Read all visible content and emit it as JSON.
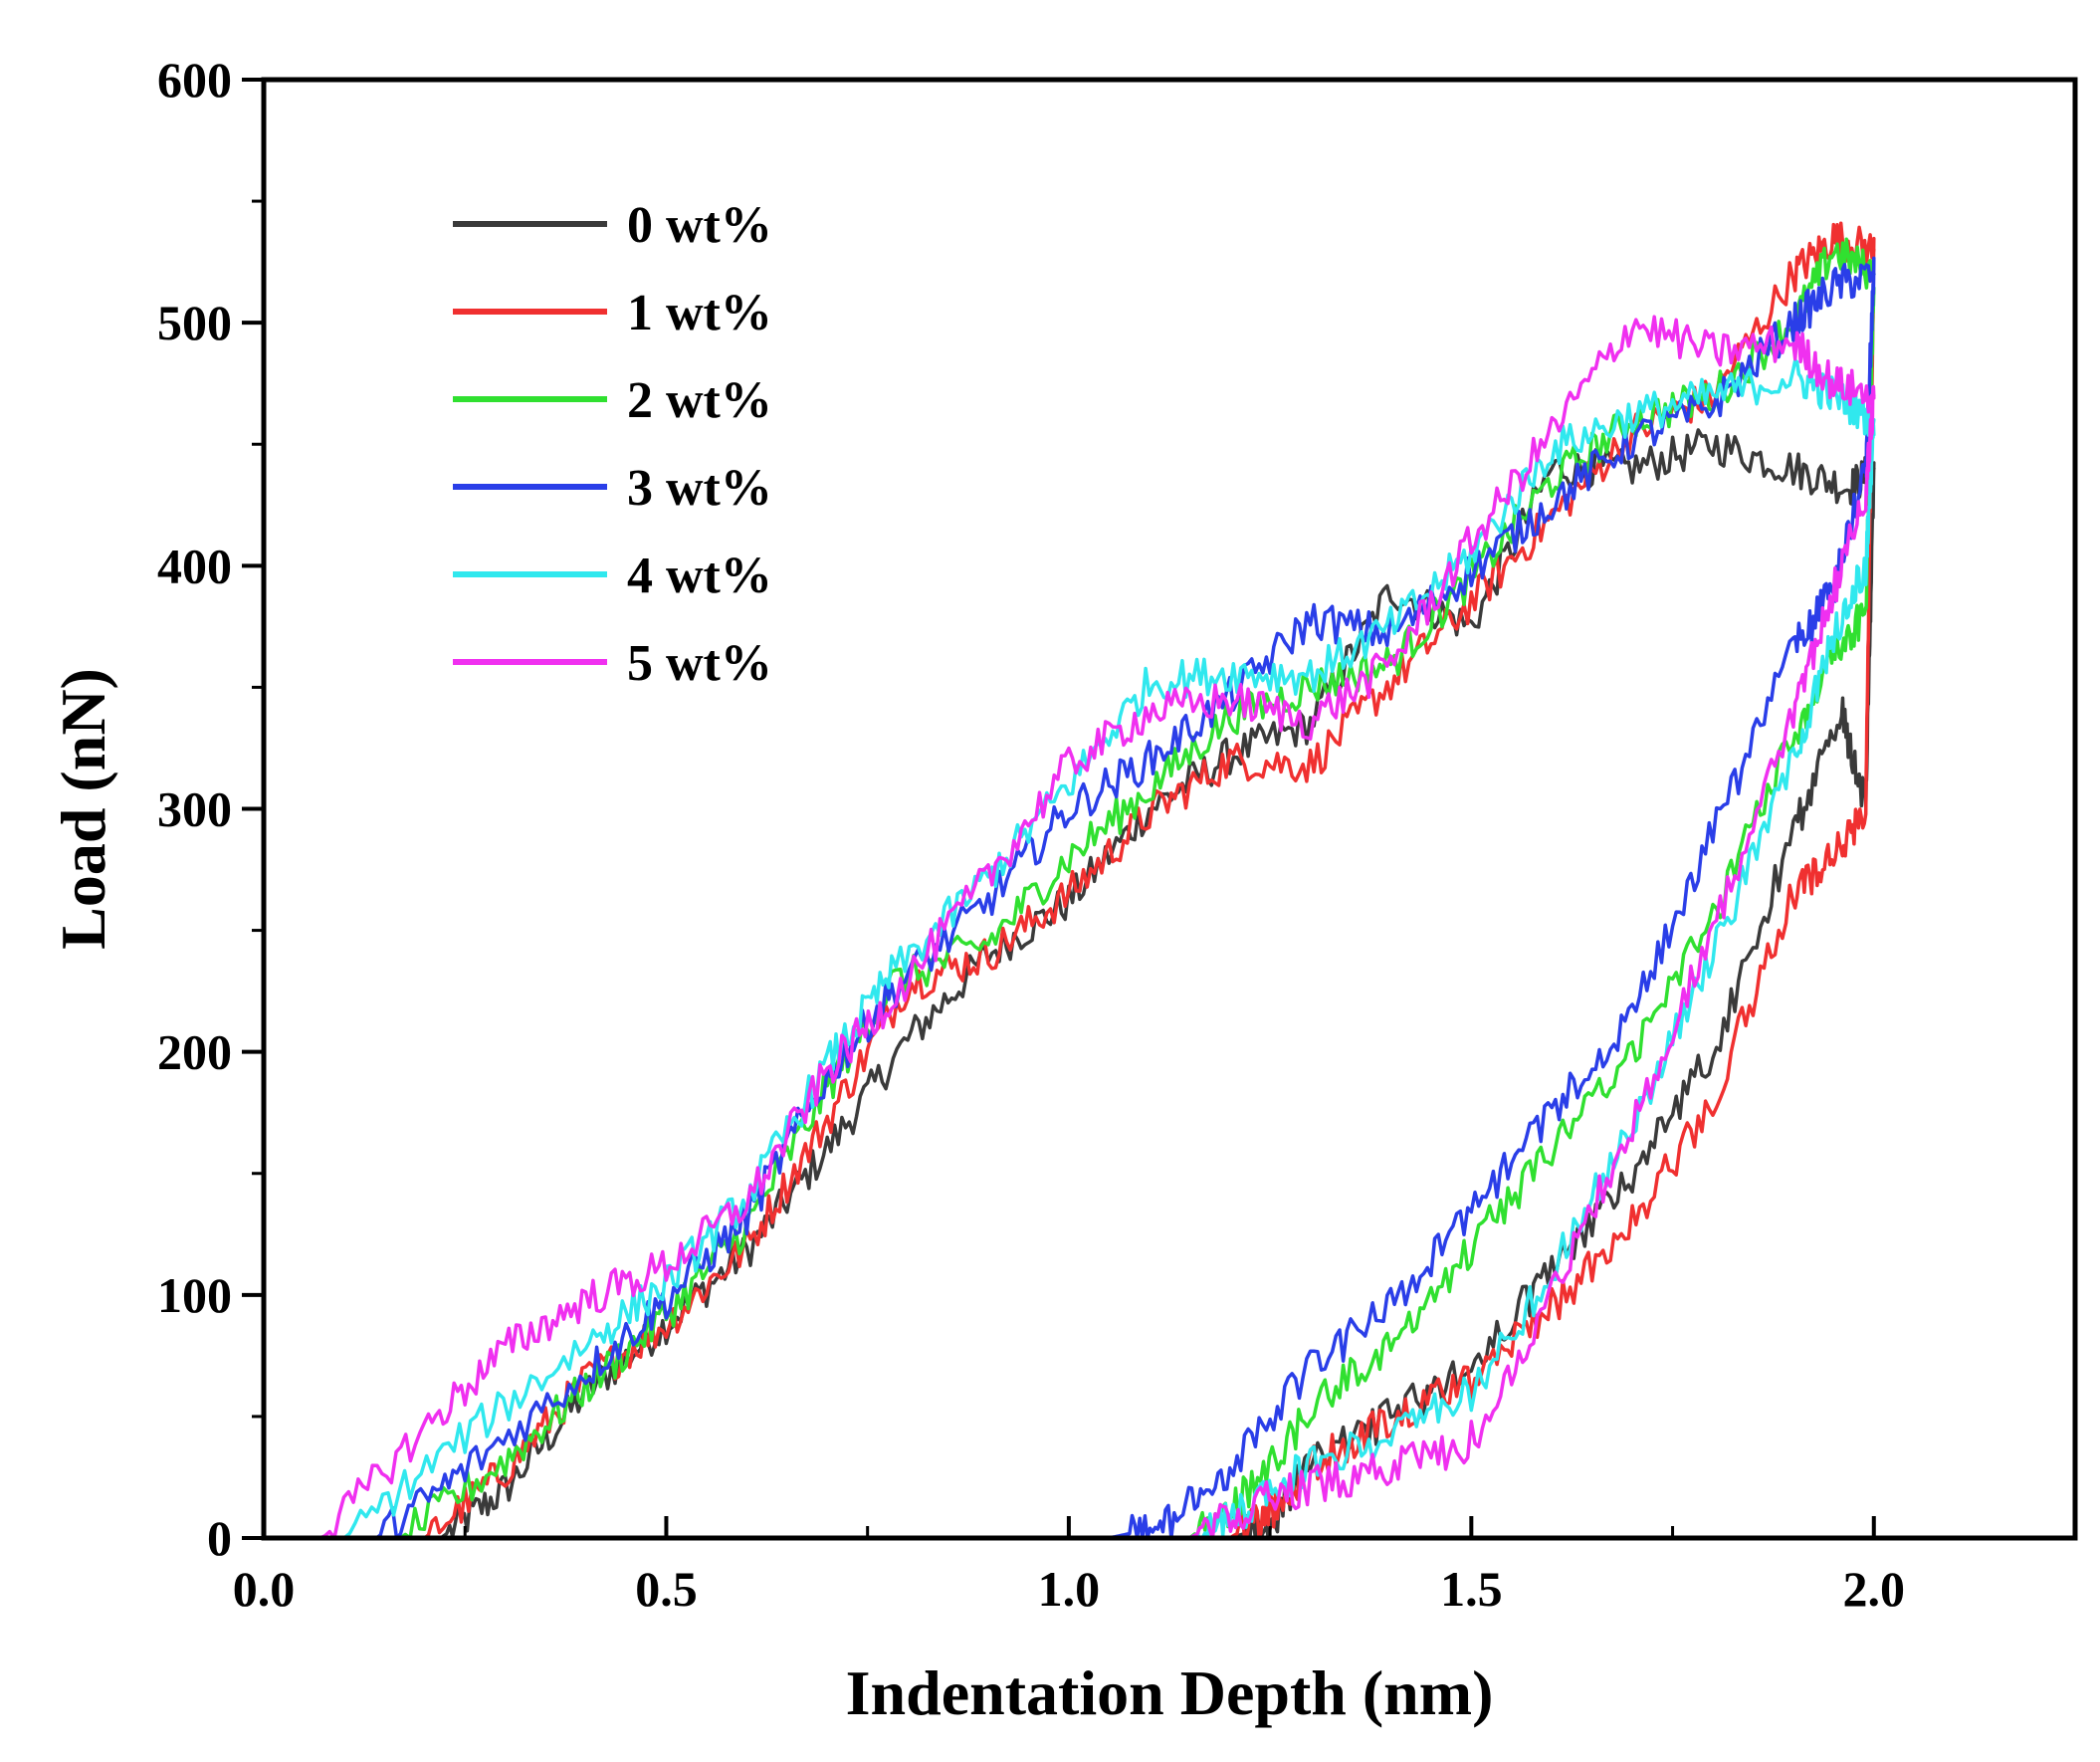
{
  "chart_data": {
    "type": "line",
    "title": "",
    "xlabel": "Indentation Depth (nm)",
    "ylabel": "Load (nN)",
    "xlim": [
      0.0,
      2.25
    ],
    "ylim": [
      0,
      600
    ],
    "x_ticks": [
      0.0,
      0.5,
      1.0,
      1.5,
      2.0
    ],
    "x_tick_labels": [
      "0.0",
      "0.5",
      "1.0",
      "1.5",
      "2.0"
    ],
    "y_ticks": [
      0,
      100,
      200,
      300,
      400,
      500,
      600
    ],
    "y_tick_labels": [
      "0",
      "100",
      "200",
      "300",
      "400",
      "500",
      "600"
    ],
    "grid": false,
    "legend_position": "top-left",
    "series": [
      {
        "name": "0 wt%",
        "color": "#3a3a3a",
        "loading": [
          [
            0.0,
            0
          ],
          [
            0.22,
            0
          ],
          [
            0.3,
            20
          ],
          [
            0.4,
            60
          ],
          [
            0.5,
            88
          ],
          [
            0.6,
            118
          ],
          [
            0.7,
            160
          ],
          [
            0.8,
            205
          ],
          [
            0.9,
            240
          ],
          [
            1.0,
            262
          ],
          [
            1.1,
            300
          ],
          [
            1.2,
            322
          ],
          [
            1.3,
            335
          ],
          [
            1.4,
            390
          ],
          [
            1.5,
            375
          ],
          [
            1.6,
            440
          ],
          [
            1.7,
            440
          ],
          [
            1.8,
            450
          ],
          [
            1.9,
            440
          ],
          [
            1.97,
            432
          ],
          [
            2.0,
            440
          ]
        ],
        "unloading": [
          [
            2.0,
            440
          ],
          [
            1.99,
            300
          ],
          [
            1.96,
            340
          ],
          [
            1.9,
            290
          ],
          [
            1.8,
            200
          ],
          [
            1.7,
            150
          ],
          [
            1.6,
            110
          ],
          [
            1.5,
            70
          ],
          [
            1.4,
            50
          ],
          [
            1.3,
            30
          ],
          [
            1.25,
            5
          ],
          [
            1.2,
            0
          ],
          [
            0.0,
            0
          ]
        ]
      },
      {
        "name": "1 wt%",
        "color": "#f03030",
        "loading": [
          [
            0.0,
            0
          ],
          [
            0.2,
            0
          ],
          [
            0.3,
            28
          ],
          [
            0.4,
            65
          ],
          [
            0.5,
            88
          ],
          [
            0.6,
            120
          ],
          [
            0.7,
            172
          ],
          [
            0.8,
            228
          ],
          [
            0.9,
            240
          ],
          [
            1.0,
            265
          ],
          [
            1.1,
            298
          ],
          [
            1.2,
            320
          ],
          [
            1.3,
            318
          ],
          [
            1.4,
            352
          ],
          [
            1.5,
            385
          ],
          [
            1.6,
            420
          ],
          [
            1.7,
            455
          ],
          [
            1.8,
            470
          ],
          [
            1.9,
            520
          ],
          [
            1.95,
            535
          ],
          [
            2.0,
            530
          ]
        ],
        "unloading": [
          [
            2.0,
            530
          ],
          [
            1.99,
            300
          ],
          [
            1.95,
            280
          ],
          [
            1.9,
            265
          ],
          [
            1.8,
            180
          ],
          [
            1.7,
            130
          ],
          [
            1.6,
            95
          ],
          [
            1.5,
            65
          ],
          [
            1.4,
            50
          ],
          [
            1.3,
            30
          ],
          [
            1.25,
            10
          ],
          [
            1.2,
            0
          ],
          [
            0.0,
            0
          ]
        ]
      },
      {
        "name": "2 wt%",
        "color": "#30e030",
        "loading": [
          [
            0.0,
            0
          ],
          [
            0.17,
            0
          ],
          [
            0.3,
            32
          ],
          [
            0.4,
            62
          ],
          [
            0.5,
            92
          ],
          [
            0.6,
            128
          ],
          [
            0.7,
            185
          ],
          [
            0.78,
            228
          ],
          [
            0.9,
            245
          ],
          [
            1.0,
            280
          ],
          [
            1.1,
            308
          ],
          [
            1.2,
            338
          ],
          [
            1.3,
            350
          ],
          [
            1.4,
            360
          ],
          [
            1.5,
            395
          ],
          [
            1.6,
            435
          ],
          [
            1.7,
            460
          ],
          [
            1.8,
            470
          ],
          [
            1.9,
            500
          ],
          [
            1.95,
            530
          ],
          [
            2.0,
            520
          ]
        ],
        "unloading": [
          [
            2.0,
            520
          ],
          [
            1.99,
            380
          ],
          [
            1.95,
            365
          ],
          [
            1.9,
            330
          ],
          [
            1.8,
            255
          ],
          [
            1.7,
            200
          ],
          [
            1.6,
            160
          ],
          [
            1.5,
            120
          ],
          [
            1.4,
            80
          ],
          [
            1.3,
            52
          ],
          [
            1.22,
            18
          ],
          [
            1.15,
            0
          ],
          [
            0.0,
            0
          ]
        ]
      },
      {
        "name": "3 wt%",
        "color": "#2a3ee8",
        "loading": [
          [
            0.0,
            0
          ],
          [
            0.14,
            0
          ],
          [
            0.25,
            28
          ],
          [
            0.4,
            68
          ],
          [
            0.5,
            98
          ],
          [
            0.6,
            132
          ],
          [
            0.7,
            190
          ],
          [
            0.78,
            225
          ],
          [
            0.9,
            262
          ],
          [
            1.0,
            300
          ],
          [
            1.1,
            320
          ],
          [
            1.2,
            346
          ],
          [
            1.3,
            378
          ],
          [
            1.4,
            372
          ],
          [
            1.5,
            398
          ],
          [
            1.6,
            426
          ],
          [
            1.7,
            452
          ],
          [
            1.8,
            466
          ],
          [
            1.9,
            500
          ],
          [
            1.95,
            515
          ],
          [
            2.0,
            520
          ]
        ],
        "unloading": [
          [
            2.0,
            520
          ],
          [
            1.99,
            440
          ],
          [
            1.95,
            390
          ],
          [
            1.9,
            365
          ],
          [
            1.8,
            290
          ],
          [
            1.7,
            215
          ],
          [
            1.6,
            175
          ],
          [
            1.5,
            135
          ],
          [
            1.4,
            95
          ],
          [
            1.3,
            70
          ],
          [
            1.2,
            28
          ],
          [
            1.12,
            5
          ],
          [
            1.05,
            0
          ],
          [
            0.0,
            0
          ]
        ]
      },
      {
        "name": "4 wt%",
        "color": "#30e8ee",
        "loading": [
          [
            0.0,
            0
          ],
          [
            0.1,
            0
          ],
          [
            0.25,
            42
          ],
          [
            0.4,
            80
          ],
          [
            0.5,
            105
          ],
          [
            0.6,
            140
          ],
          [
            0.7,
            195
          ],
          [
            0.78,
            232
          ],
          [
            0.9,
            272
          ],
          [
            1.0,
            310
          ],
          [
            1.1,
            352
          ],
          [
            1.2,
            356
          ],
          [
            1.3,
            355
          ],
          [
            1.4,
            375
          ],
          [
            1.5,
            405
          ],
          [
            1.6,
            448
          ],
          [
            1.7,
            462
          ],
          [
            1.8,
            470
          ],
          [
            1.9,
            478
          ],
          [
            1.95,
            470
          ],
          [
            2.0,
            460
          ]
        ],
        "unloading": [
          [
            2.0,
            460
          ],
          [
            1.99,
            400
          ],
          [
            1.95,
            370
          ],
          [
            1.9,
            320
          ],
          [
            1.8,
            240
          ],
          [
            1.7,
            170
          ],
          [
            1.6,
            110
          ],
          [
            1.5,
            60
          ],
          [
            1.4,
            42
          ],
          [
            1.3,
            30
          ],
          [
            1.22,
            12
          ],
          [
            1.15,
            0
          ],
          [
            0.0,
            0
          ]
        ]
      },
      {
        "name": "5 wt%",
        "color": "#f030f0",
        "loading": [
          [
            0.0,
            0
          ],
          [
            0.07,
            0
          ],
          [
            0.2,
            45
          ],
          [
            0.3,
            78
          ],
          [
            0.4,
            98
          ],
          [
            0.5,
            112
          ],
          [
            0.6,
            138
          ],
          [
            0.7,
            192
          ],
          [
            0.78,
            222
          ],
          [
            0.9,
            272
          ],
          [
            1.0,
            318
          ],
          [
            1.1,
            340
          ],
          [
            1.2,
            345
          ],
          [
            1.3,
            336
          ],
          [
            1.4,
            360
          ],
          [
            1.5,
            410
          ],
          [
            1.6,
            455
          ],
          [
            1.7,
            500
          ],
          [
            1.8,
            488
          ],
          [
            1.9,
            492
          ],
          [
            1.95,
            475
          ],
          [
            2.0,
            470
          ]
        ],
        "unloading": [
          [
            2.0,
            470
          ],
          [
            1.99,
            430
          ],
          [
            1.95,
            390
          ],
          [
            1.9,
            340
          ],
          [
            1.8,
            250
          ],
          [
            1.7,
            170
          ],
          [
            1.6,
            100
          ],
          [
            1.5,
            40
          ],
          [
            1.4,
            28
          ],
          [
            1.3,
            22
          ],
          [
            1.22,
            12
          ],
          [
            1.15,
            0
          ],
          [
            0.0,
            0
          ]
        ]
      }
    ]
  }
}
